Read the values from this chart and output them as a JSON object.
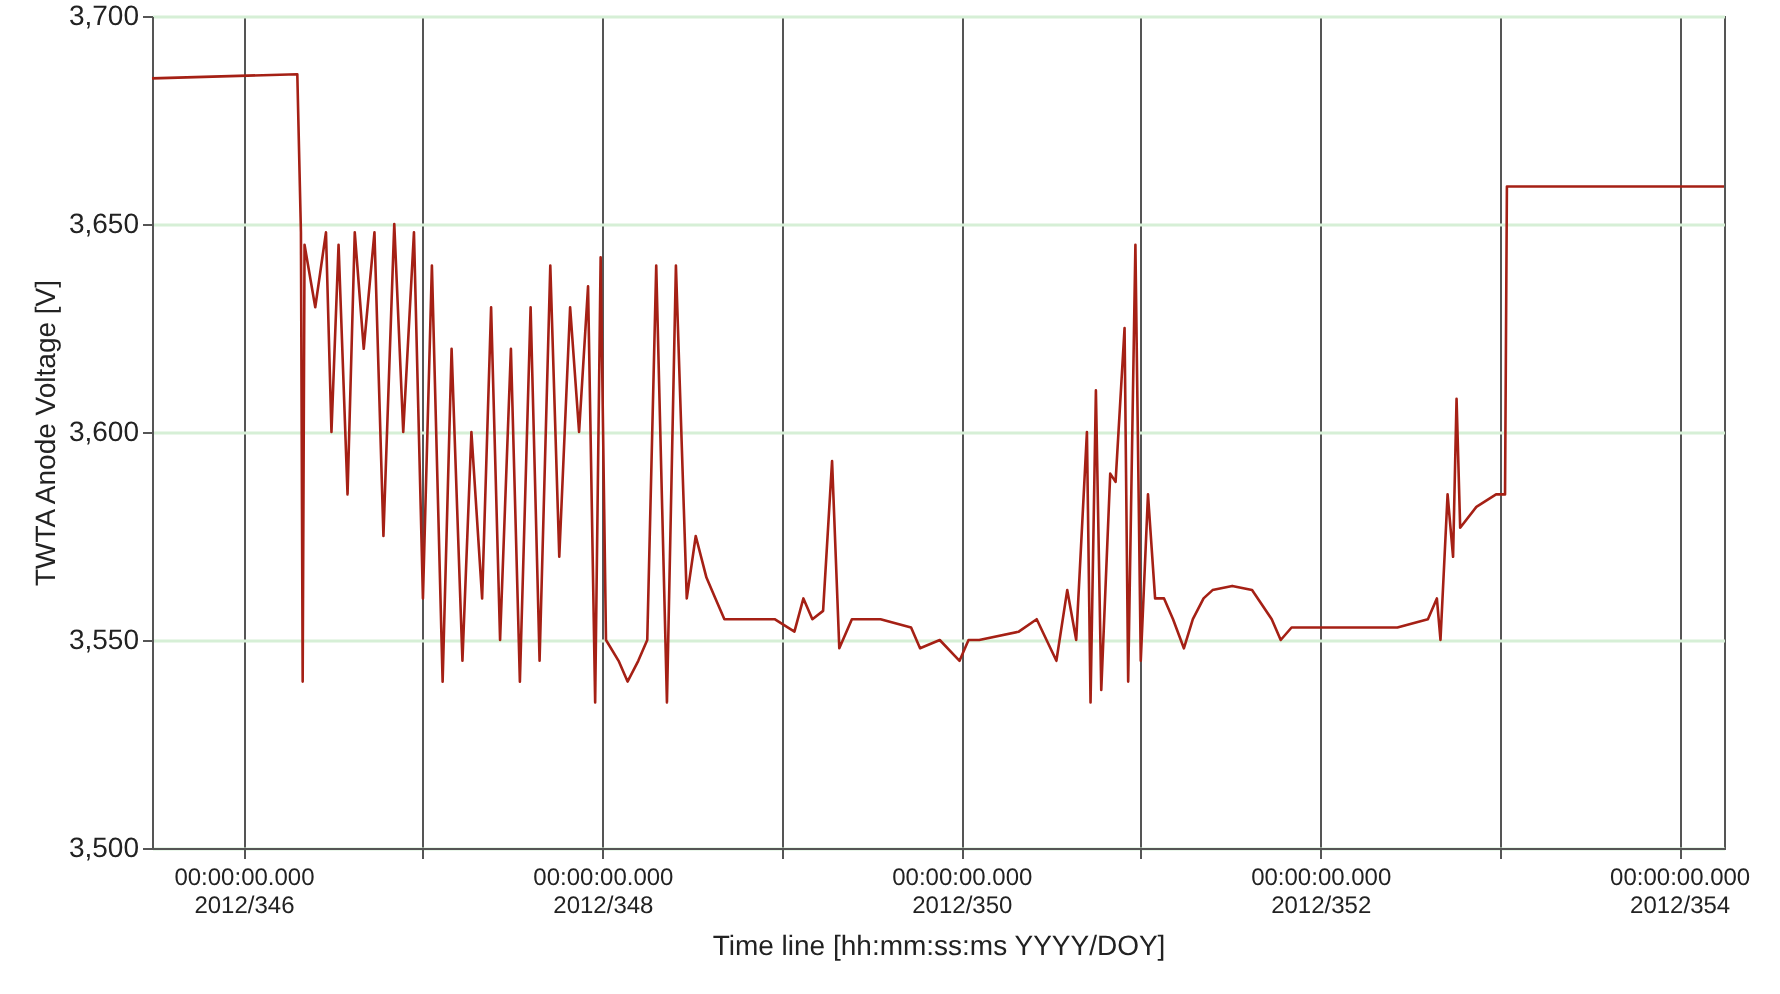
{
  "chart_data": {
    "type": "line",
    "xlabel": "Time line [hh:mm:ss:ms  YYYY/DOY]",
    "ylabel": "TWTA Anode Voltage [V]",
    "xlim": [
      "2012-12-10T11:46",
      "2012-12-19T06:00"
    ],
    "ylim": [
      3500,
      3700
    ],
    "xticks": [
      {
        "value": "2012-12-11",
        "label": "00:00:00.000\n2012/346"
      },
      {
        "value": "2012-12-12",
        "label": null
      },
      {
        "value": "2012-12-13",
        "label": "00:00:00.000\n2012/348"
      },
      {
        "value": "2012-12-14",
        "label": null
      },
      {
        "value": "2012-12-15",
        "label": "00:00:00.000\n2012/350"
      },
      {
        "value": "2012-12-16",
        "label": null
      },
      {
        "value": "2012-12-17",
        "label": "00:00:00.000\n2012/352"
      },
      {
        "value": "2012-12-18",
        "label": null
      },
      {
        "value": "2012-12-19",
        "label": "00:00:00.000\n2012/354"
      }
    ],
    "yticks": [
      {
        "value": 3500,
        "label": "3,500"
      },
      {
        "value": 3550,
        "label": "3,550"
      },
      {
        "value": 3600,
        "label": "3,600"
      },
      {
        "value": 3650,
        "label": "3,650"
      },
      {
        "value": 3700,
        "label": "3,700"
      }
    ],
    "grid": true,
    "marker": "none",
    "line_style": "solid",
    "x": [
      "2012-12-10T11:46",
      "2012-12-11T07:12",
      "2012-12-11T07:41",
      "2012-12-11T07:55",
      "2012-12-11T08:10",
      "2012-12-11T09:36",
      "2012-12-11T11:02",
      "2012-12-11T11:46",
      "2012-12-11T12:43",
      "2012-12-11T13:55",
      "2012-12-11T14:53",
      "2012-12-11T16:05",
      "2012-12-11T17:31",
      "2012-12-11T18:43",
      "2012-12-11T20:10",
      "2012-12-11T21:22",
      "2012-12-11T22:48",
      "2012-12-12T00:00",
      "2012-12-12T01:12",
      "2012-12-12T02:38",
      "2012-12-12T03:50",
      "2012-12-12T05:17",
      "2012-12-12T06:29",
      "2012-12-12T07:55",
      "2012-12-12T09:07",
      "2012-12-12T10:19",
      "2012-12-12T11:46",
      "2012-12-12T12:58",
      "2012-12-12T14:24",
      "2012-12-12T15:36",
      "2012-12-12T17:02",
      "2012-12-12T18:14",
      "2012-12-12T19:41",
      "2012-12-12T20:53",
      "2012-12-12T22:05",
      "2012-12-12T23:02",
      "2012-12-12T23:46",
      "2012-12-13T00:29",
      "2012-12-13T02:10",
      "2012-12-13T03:22",
      "2012-12-13T04:48",
      "2012-12-13T06:00",
      "2012-12-13T07:12",
      "2012-12-13T08:38",
      "2012-12-13T09:50",
      "2012-12-13T11:17",
      "2012-12-13T12:29",
      "2012-12-13T13:55",
      "2012-12-13T15:07",
      "2012-12-13T16:19",
      "2012-12-13T18:58",
      "2012-12-13T23:02",
      "2012-12-14T01:41",
      "2012-12-14T02:53",
      "2012-12-14T04:05",
      "2012-12-14T05:31",
      "2012-12-14T06:43",
      "2012-12-14T07:41",
      "2012-12-14T09:22",
      "2012-12-14T13:12",
      "2012-12-14T17:17",
      "2012-12-14T18:29",
      "2012-12-14T21:07",
      "2012-12-14T23:46",
      "2012-12-15T00:58",
      "2012-12-15T02:24",
      "2012-12-15T07:41",
      "2012-12-15T10:05",
      "2012-12-15T12:43",
      "2012-12-15T14:10",
      "2012-12-15T15:22",
      "2012-12-15T16:48",
      "2012-12-15T17:17",
      "2012-12-15T18:00",
      "2012-12-15T18:43",
      "2012-12-15T19:55",
      "2012-12-15T20:38",
      "2012-12-15T21:50",
      "2012-12-15T22:19",
      "2012-12-15T23:17",
      "2012-12-16T00:00",
      "2012-12-16T00:58",
      "2012-12-16T01:55",
      "2012-12-16T03:07",
      "2012-12-16T04:19",
      "2012-12-16T05:46",
      "2012-12-16T06:58",
      "2012-12-16T08:24",
      "2012-12-16T09:36",
      "2012-12-16T12:14",
      "2012-12-16T14:53",
      "2012-12-16T17:31",
      "2012-12-16T18:43",
      "2012-12-16T20:10",
      "2012-12-17T01:12",
      "2012-12-17T10:19",
      "2012-12-17T14:24",
      "2012-12-17T15:36",
      "2012-12-17T16:05",
      "2012-12-17T17:02",
      "2012-12-17T17:46",
      "2012-12-17T18:14",
      "2012-12-17T18:43",
      "2012-12-17T20:53",
      "2012-12-17T23:31",
      "2012-12-18T00:43",
      "2012-12-18T00:58",
      "2012-12-19T06:00"
    ],
    "series": [
      {
        "color": "#a52015",
        "values": [
          3685,
          3686,
          3648,
          3540,
          3645,
          3630,
          3648,
          3600,
          3645,
          3585,
          3648,
          3620,
          3648,
          3575,
          3650,
          3600,
          3648,
          3560,
          3640,
          3540,
          3620,
          3545,
          3600,
          3560,
          3630,
          3550,
          3620,
          3540,
          3630,
          3545,
          3640,
          3570,
          3630,
          3600,
          3635,
          3535,
          3642,
          3550,
          3545,
          3540,
          3545,
          3550,
          3640,
          3535,
          3640,
          3560,
          3575,
          3565,
          3560,
          3555,
          3555,
          3555,
          3552,
          3560,
          3555,
          3557,
          3593,
          3548,
          3555,
          3555,
          3553,
          3548,
          3550,
          3545,
          3550,
          3550,
          3552,
          3555,
          3545,
          3562,
          3550,
          3600,
          3535,
          3610,
          3538,
          3590,
          3588,
          3625,
          3540,
          3645,
          3545,
          3585,
          3560,
          3560,
          3555,
          3548,
          3555,
          3560,
          3562,
          3563,
          3562,
          3555,
          3550,
          3553,
          3553,
          3553,
          3555,
          3560,
          3550,
          3585,
          3570,
          3608,
          3577,
          3582,
          3585,
          3585,
          3659,
          3659
        ]
      }
    ]
  }
}
